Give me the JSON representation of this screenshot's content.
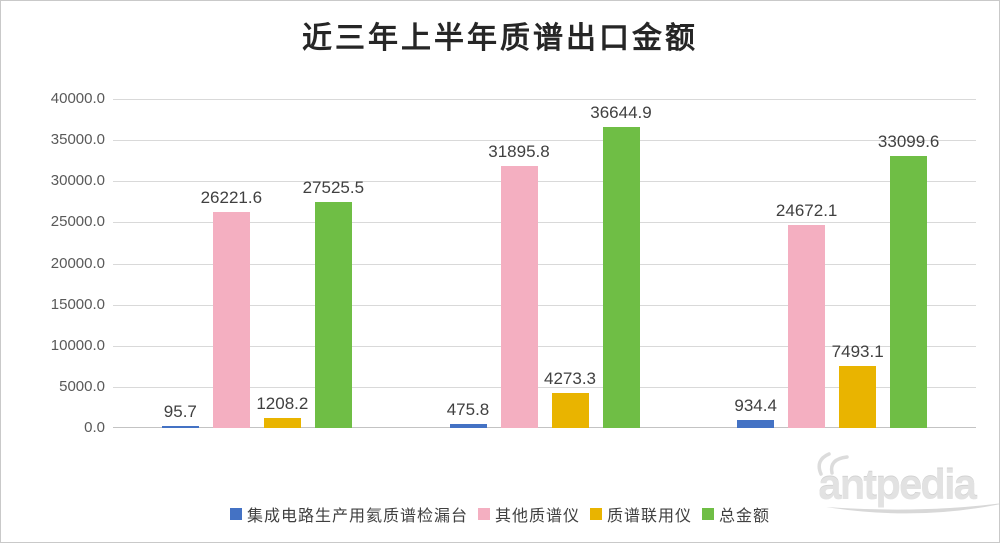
{
  "watermark": {
    "text": "antpedia"
  },
  "chart_data": {
    "type": "bar",
    "title": "近三年上半年质谱出口金额",
    "categories": [
      "",
      "",
      ""
    ],
    "series": [
      {
        "name": "集成电路生产用氦质谱检漏台",
        "color": "#4472c4",
        "values": [
          95.7,
          475.8,
          934.4
        ]
      },
      {
        "name": "其他质谱仪",
        "color": "#f4afc1",
        "values": [
          26221.6,
          31895.8,
          24672.1
        ]
      },
      {
        "name": "质谱联用仪",
        "color": "#e9b400",
        "values": [
          1208.2,
          4273.3,
          7493.1
        ]
      },
      {
        "name": "总金额",
        "color": "#6fbe45",
        "values": [
          27525.5,
          36644.9,
          33099.6
        ]
      }
    ],
    "ylim": [
      0,
      40000
    ],
    "ytick_step": 5000,
    "ytick_labels": [
      "40000.0",
      "35000.0",
      "30000.0",
      "25000.0",
      "20000.0",
      "15000.0",
      "10000.0",
      "5000.0",
      "0.0"
    ],
    "value_label_decimals": 1,
    "grid": true,
    "legend_position": "bottom",
    "x_axis_labels_visible": false,
    "colors": {
      "gridline": "#d9d9d9",
      "axis_line": "#c3c3c3",
      "tick_label": "#595959",
      "value_label": "#404040",
      "title_text": "#262626",
      "watermark": "#e2e2e2"
    }
  }
}
